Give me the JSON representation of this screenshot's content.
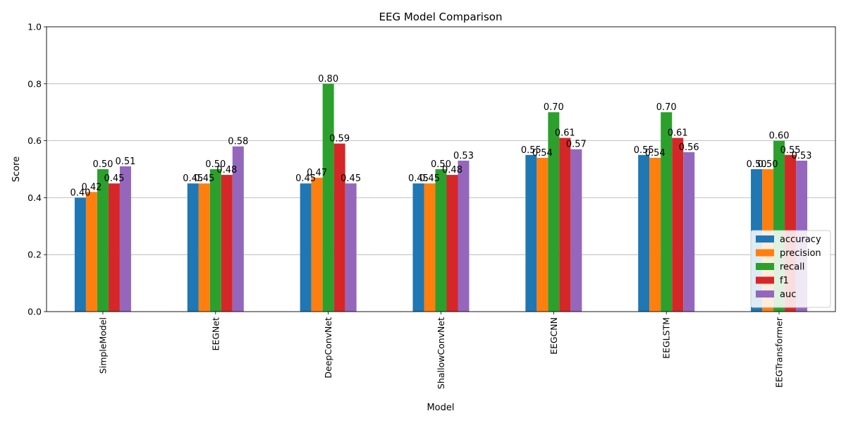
{
  "chart_data": {
    "type": "bar",
    "title": "EEG Model Comparison",
    "xlabel": "Model",
    "ylabel": "Score",
    "ylim": [
      0,
      1
    ],
    "yticks": [
      0.0,
      0.2,
      0.4,
      0.6,
      0.8,
      1.0
    ],
    "ytick_labels": [
      "0.0",
      "0.2",
      "0.4",
      "0.6",
      "0.8",
      "1.0"
    ],
    "grid": "y",
    "legend_position": "lower-right",
    "categories": [
      "SimpleModel",
      "EEGNet",
      "DeepConvNet",
      "ShallowConvNet",
      "EEGCNN",
      "EEGLSTM",
      "EEGTransformer"
    ],
    "series": [
      {
        "name": "accuracy",
        "color": "#1f77b4",
        "values": [
          0.4,
          0.45,
          0.45,
          0.45,
          0.55,
          0.55,
          0.5
        ]
      },
      {
        "name": "precision",
        "color": "#ff7f0e",
        "values": [
          0.42,
          0.45,
          0.47,
          0.45,
          0.54,
          0.54,
          0.5
        ]
      },
      {
        "name": "recall",
        "color": "#2ca02c",
        "values": [
          0.5,
          0.5,
          0.8,
          0.5,
          0.7,
          0.7,
          0.6
        ]
      },
      {
        "name": "f1",
        "color": "#d62728",
        "values": [
          0.45,
          0.48,
          0.59,
          0.48,
          0.61,
          0.61,
          0.55
        ]
      },
      {
        "name": "auc",
        "color": "#9467bd",
        "values": [
          0.51,
          0.58,
          0.45,
          0.53,
          0.57,
          0.56,
          0.53
        ]
      }
    ]
  }
}
